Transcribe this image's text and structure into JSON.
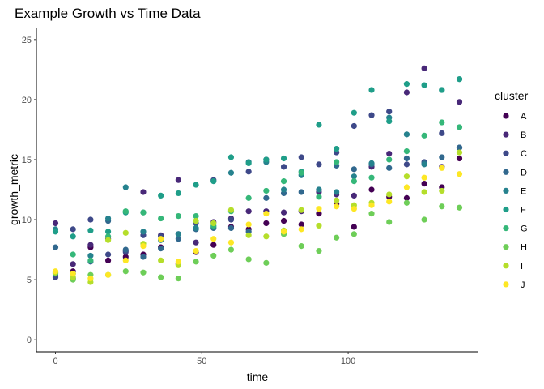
{
  "chart_data": {
    "type": "scatter",
    "title": "Example Growth vs Time Data",
    "xlabel": "time",
    "ylabel": "growth_metric",
    "xlim": [
      -6.5,
      144.5
    ],
    "ylim": [
      -1,
      26
    ],
    "x_ticks": [
      0,
      50,
      100
    ],
    "y_ticks": [
      0,
      5,
      10,
      15,
      20,
      25
    ],
    "grid": false,
    "legend": {
      "title": "cluster",
      "position": "right"
    },
    "x": [
      0,
      6,
      12,
      18,
      24,
      30,
      36,
      42,
      48,
      54,
      60,
      66,
      72,
      78,
      84,
      90,
      96,
      102,
      108,
      114,
      120,
      126,
      132,
      138
    ],
    "series": [
      {
        "name": "A",
        "color": "#440154",
        "values": [
          5.3,
          5.7,
          7.7,
          6.6,
          6.9,
          7.1,
          7.7,
          6.3,
          7.3,
          7.9,
          9.4,
          9.2,
          9.7,
          9.9,
          9.6,
          10.5,
          11.3,
          9.4,
          12.5,
          11.9,
          11.8,
          13.0,
          12.7,
          15.1
        ]
      },
      {
        "name": "B",
        "color": "#482878",
        "values": [
          9.7,
          6.3,
          7.9,
          8.4,
          7.4,
          12.3,
          8.7,
          13.3,
          8.1,
          9.8,
          10.1,
          10.7,
          10.7,
          10.6,
          10.7,
          12.3,
          12.1,
          12.0,
          14.4,
          15.5,
          20.6,
          22.6,
          14.4,
          19.8
        ]
      },
      {
        "name": "C",
        "color": "#3e4989",
        "values": [
          5.2,
          9.2,
          10.0,
          7.1,
          7.3,
          8.7,
          8.6,
          8.8,
          9.7,
          13.3,
          10.0,
          14.0,
          15.0,
          14.4,
          15.2,
          14.6,
          15.6,
          17.8,
          18.7,
          19.0,
          14.6,
          14.8,
          17.2,
          16.0
        ]
      },
      {
        "name": "D",
        "color": "#31688e",
        "values": [
          7.7,
          5.1,
          6.5,
          9.9,
          7.5,
          6.9,
          7.6,
          8.4,
          9.2,
          9.3,
          9.3,
          9.0,
          11.8,
          12.2,
          12.3,
          12.5,
          14.5,
          14.2,
          14.6,
          14.3,
          15.1,
          14.7,
          15.2,
          16.0
        ]
      },
      {
        "name": "E",
        "color": "#26828e",
        "values": [
          9.2,
          5.5,
          7.0,
          10.1,
          12.7,
          9.0,
          8.3,
          8.8,
          9.3,
          9.4,
          13.9,
          14.8,
          14.8,
          12.5,
          13.7,
          12.5,
          12.3,
          13.6,
          14.7,
          18.5,
          17.1,
          14.6,
          20.8,
          21.7
        ]
      },
      {
        "name": "F",
        "color": "#1f9e89",
        "values": [
          9.0,
          8.6,
          9.1,
          9.0,
          10.6,
          10.6,
          12.0,
          12.2,
          12.9,
          13.2,
          15.2,
          14.7,
          15.0,
          15.1,
          14.0,
          17.9,
          15.9,
          18.9,
          20.8,
          18.2,
          21.3,
          21.2,
          20.8,
          21.7
        ]
      },
      {
        "name": "G",
        "color": "#35b779",
        "values": [
          5.5,
          7.1,
          6.6,
          8.6,
          10.7,
          10.6,
          10.1,
          10.3,
          10.3,
          9.5,
          10.7,
          11.8,
          12.4,
          13.2,
          13.9,
          11.9,
          14.8,
          13.2,
          13.5,
          15.0,
          15.7,
          17.0,
          18.1,
          17.7
        ]
      },
      {
        "name": "H",
        "color": "#6ece58",
        "values": [
          5.6,
          5.0,
          5.4,
          5.4,
          5.7,
          5.6,
          5.2,
          5.1,
          6.5,
          7.0,
          7.5,
          6.7,
          6.4,
          8.8,
          7.8,
          7.4,
          8.5,
          8.8,
          10.5,
          9.8,
          11.4,
          10.0,
          11.1,
          11.0
        ]
      },
      {
        "name": "I",
        "color": "#b5de2b",
        "values": [
          5.6,
          5.2,
          4.8,
          8.3,
          8.9,
          8.0,
          6.6,
          6.2,
          9.9,
          9.7,
          10.8,
          8.7,
          8.6,
          9.1,
          10.8,
          9.5,
          11.6,
          11.2,
          11.4,
          12.1,
          13.6,
          12.3,
          12.4,
          15.6
        ]
      },
      {
        "name": "J",
        "color": "#fde725",
        "values": [
          5.7,
          5.5,
          5.1,
          5.4,
          6.6,
          7.8,
          8.4,
          6.5,
          7.4,
          8.4,
          8.1,
          9.6,
          10.5,
          9.0,
          9.2,
          10.9,
          11.1,
          10.9,
          11.2,
          11.5,
          12.7,
          13.5,
          14.3,
          13.8
        ]
      }
    ]
  }
}
